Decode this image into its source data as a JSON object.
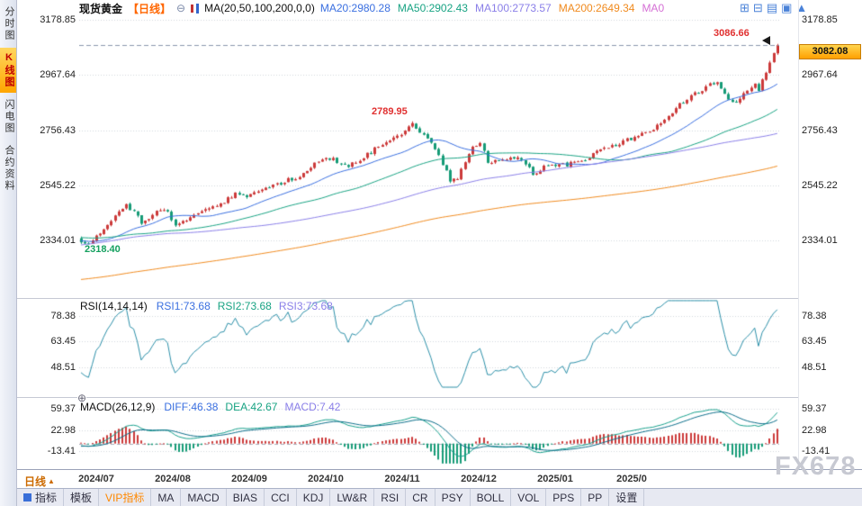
{
  "palette": {
    "up": "#cc3a3a",
    "down": "#169b77",
    "ma20": "#3a6fe0",
    "ma50": "#18a383",
    "ma100": "#8a7fe8",
    "ma200": "#f08a1e",
    "ma0": "#d56fd5",
    "rsi_line": "#2b8fa8",
    "diff_line": "#17a08c",
    "dea_line": "#0c6e8a",
    "last_price_line": "#8a97ad",
    "accent_orange": "#ff6600"
  },
  "header": {
    "symbol": "现货黄金",
    "period_tag": "【日线】",
    "collapse_icon": "⊖",
    "ma_settings": "MA(20,50,100,200,0,0)",
    "ma_values": [
      {
        "label": "MA20:2980.28",
        "color": "#3a6fe0"
      },
      {
        "label": "MA50:2902.43",
        "color": "#18a383"
      },
      {
        "label": "MA100:2773.57",
        "color": "#8a7fe8"
      },
      {
        "label": "MA200:2649.34",
        "color": "#f08a1e"
      },
      {
        "label": "MA0",
        "color": "#d56fd5"
      }
    ],
    "window_icons": [
      {
        "name": "layout-grid-icon",
        "glyph": "⊞"
      },
      {
        "name": "layout-split-icon",
        "glyph": "⊟"
      },
      {
        "name": "layout-rows-icon",
        "glyph": "▤"
      },
      {
        "name": "layout-single-icon",
        "glyph": "▣"
      },
      {
        "name": "maximize-icon",
        "glyph": "▲"
      }
    ]
  },
  "sidebar": {
    "items": [
      {
        "id": "time-chart",
        "label": "分时图",
        "active": false
      },
      {
        "id": "kline-chart",
        "label": "K线图",
        "active": true
      },
      {
        "id": "flash-chart",
        "label": "闪电图",
        "active": false
      },
      {
        "id": "contract-info",
        "label": "合约资料",
        "active": false
      }
    ]
  },
  "main_chart": {
    "high_label": "3086.66",
    "last_price": "3082.08",
    "peak_label": "2789.95",
    "low_label": "2318.40"
  },
  "rsi_panel": {
    "title": "RSI(14,14,14)",
    "values": [
      {
        "label": "RSI1:73.68",
        "color": "#3a6fe0"
      },
      {
        "label": "RSI2:73.68",
        "color": "#18a383"
      },
      {
        "label": "RSI3:73.68",
        "color": "#8a7fe8"
      }
    ]
  },
  "macd_panel": {
    "title": "MACD(26,12,9)",
    "expand_icon": "⊕",
    "values": [
      {
        "label": "DIFF:46.38",
        "color": "#3a6fe0"
      },
      {
        "label": "DEA:42.67",
        "color": "#18a383"
      },
      {
        "label": "MACD:7.42",
        "color": "#8a7fe8"
      }
    ]
  },
  "x_axis": {
    "period_button": "日线",
    "period_button_arrow": "▲",
    "labels": [
      "2024/07",
      "2024/08",
      "2024/09",
      "2024/10",
      "2024/11",
      "2024/12",
      "2025/01",
      "2025/0"
    ]
  },
  "bottom_toolbar": {
    "tabs": [
      {
        "label": "指标",
        "icon": true
      },
      {
        "label": "模板"
      },
      {
        "label": "VIP指标",
        "color": "#ff8800"
      },
      {
        "label": "MA"
      },
      {
        "label": "MACD"
      },
      {
        "label": "BIAS"
      },
      {
        "label": "CCI"
      },
      {
        "label": "KDJ"
      },
      {
        "label": "LW&R"
      },
      {
        "label": "RSI"
      },
      {
        "label": "CR"
      },
      {
        "label": "PSY"
      },
      {
        "label": "BOLL"
      },
      {
        "label": "VOL"
      },
      {
        "label": "PPS"
      },
      {
        "label": "PP"
      },
      {
        "label": "设置"
      }
    ]
  },
  "watermark": "FX678",
  "chart_data": {
    "type": "candlestick",
    "symbol": "现货黄金",
    "period": "日线",
    "y_axis_ticks": [
      3178.85,
      2967.64,
      2756.43,
      2545.22,
      2334.01
    ],
    "key_points": {
      "period_high": 3086.66,
      "last_close": 3082.08,
      "interim_peak": 2789.95,
      "period_low": 2318.4
    },
    "ma_current": {
      "ma20": 2980.28,
      "ma50": 2902.43,
      "ma100": 2773.57,
      "ma200": 2649.34
    },
    "rsi": {
      "periods": [
        14,
        14,
        14
      ],
      "rsi1": 73.68,
      "rsi2": 73.68,
      "rsi3": 73.68,
      "ticks": [
        78.38,
        63.45,
        48.51
      ]
    },
    "macd": {
      "params": [
        26,
        12,
        9
      ],
      "diff": 46.38,
      "dea": 42.67,
      "macd": 7.42,
      "ticks": [
        59.37,
        22.98,
        -13.41
      ]
    },
    "total_days": 400,
    "visible_days": [
      214,
      399
    ],
    "close_anchors": [
      [
        0,
        2010
      ],
      [
        25,
        1992
      ],
      [
        45,
        2042
      ],
      [
        70,
        2082
      ],
      [
        85,
        2062
      ],
      [
        100,
        2056
      ],
      [
        112,
        2122
      ],
      [
        125,
        2202
      ],
      [
        140,
        2355
      ],
      [
        150,
        2322
      ],
      [
        160,
        2372
      ],
      [
        170,
        2342
      ],
      [
        180,
        2366
      ],
      [
        190,
        2346
      ],
      [
        200,
        2336
      ],
      [
        210,
        2332
      ],
      [
        214,
        2332
      ],
      [
        216,
        2320
      ],
      [
        220,
        2372
      ],
      [
        226,
        2472
      ],
      [
        230,
        2406
      ],
      [
        234,
        2442
      ],
      [
        237,
        2448
      ],
      [
        239,
        2388
      ],
      [
        244,
        2432
      ],
      [
        250,
        2468
      ],
      [
        255,
        2512
      ],
      [
        258,
        2502
      ],
      [
        262,
        2522
      ],
      [
        268,
        2558
      ],
      [
        273,
        2588
      ],
      [
        278,
        2652
      ],
      [
        280,
        2648
      ],
      [
        285,
        2622
      ],
      [
        290,
        2662
      ],
      [
        295,
        2712
      ],
      [
        300,
        2748
      ],
      [
        302,
        2782
      ],
      [
        305,
        2738
      ],
      [
        308,
        2682
      ],
      [
        312,
        2568
      ],
      [
        314,
        2572
      ],
      [
        318,
        2688
      ],
      [
        320,
        2712
      ],
      [
        322,
        2628
      ],
      [
        326,
        2642
      ],
      [
        330,
        2658
      ],
      [
        334,
        2592
      ],
      [
        338,
        2618
      ],
      [
        342,
        2622
      ],
      [
        346,
        2632
      ],
      [
        350,
        2662
      ],
      [
        354,
        2688
      ],
      [
        358,
        2712
      ],
      [
        362,
        2742
      ],
      [
        366,
        2762
      ],
      [
        369,
        2798
      ],
      [
        373,
        2852
      ],
      [
        377,
        2898
      ],
      [
        381,
        2928
      ],
      [
        383,
        2948
      ],
      [
        386,
        2872
      ],
      [
        388,
        2862
      ],
      [
        390,
        2892
      ],
      [
        392,
        2912
      ],
      [
        393,
        2932
      ],
      [
        394,
        2908
      ],
      [
        396,
        2982
      ],
      [
        398,
        3048
      ],
      [
        399,
        3082.08
      ]
    ]
  }
}
